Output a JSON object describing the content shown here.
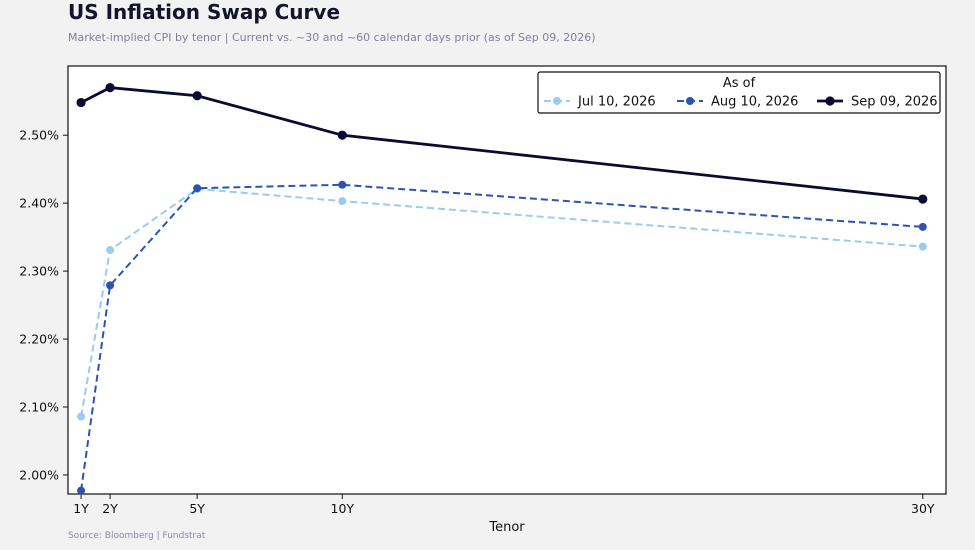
{
  "header": {
    "title": "US Inflation Swap Curve",
    "subtitle": "Market-implied CPI by tenor  |  Current vs. ~30 and ~60 calendar days prior  (as of Sep 09, 2026)"
  },
  "footer": {
    "source": "Source: Bloomberg | Fundstrat"
  },
  "chart_data": {
    "type": "line",
    "xlabel": "Tenor",
    "ylabel": "",
    "x": [
      1,
      2,
      5,
      10,
      30
    ],
    "x_tick_labels": [
      "1Y",
      "2Y",
      "5Y",
      "10Y",
      "30Y"
    ],
    "xlim": [
      0.55,
      30.8
    ],
    "ylim": [
      1.972,
      2.6018
    ],
    "y_ticks": [
      2.0,
      2.1,
      2.2,
      2.3,
      2.4,
      2.5
    ],
    "y_tick_labels": [
      "2.00%",
      "2.10%",
      "2.20%",
      "2.30%",
      "2.40%",
      "2.50%"
    ],
    "grid": false,
    "legend": {
      "title": "As of",
      "placement": "top-right"
    },
    "series": [
      {
        "name": "Jul 10, 2026",
        "values": [
          2.086,
          2.331,
          2.421,
          2.403,
          2.336
        ],
        "color": "#99ccf0",
        "style": "dashed"
      },
      {
        "name": "Aug 10, 2026",
        "values": [
          1.977,
          2.279,
          2.422,
          2.427,
          2.365
        ],
        "color": "#2b55b0",
        "style": "dashed"
      },
      {
        "name": "Sep 09, 2026",
        "values": [
          2.548,
          2.57,
          2.558,
          2.5,
          2.406
        ],
        "color": "#0b0a33",
        "style": "solid"
      }
    ]
  }
}
